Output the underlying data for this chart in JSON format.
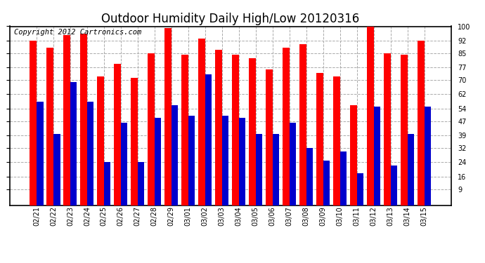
{
  "title": "Outdoor Humidity Daily High/Low 20120316",
  "copyright": "Copyright 2012 Cartronics.com",
  "dates": [
    "02/21",
    "02/22",
    "02/23",
    "02/24",
    "02/25",
    "02/26",
    "02/27",
    "02/28",
    "02/29",
    "03/01",
    "03/02",
    "03/03",
    "03/04",
    "03/05",
    "03/06",
    "03/07",
    "03/08",
    "03/09",
    "03/10",
    "03/11",
    "03/12",
    "03/13",
    "03/14",
    "03/15"
  ],
  "highs": [
    92,
    88,
    95,
    96,
    72,
    79,
    71,
    85,
    99,
    84,
    93,
    87,
    84,
    82,
    76,
    88,
    90,
    74,
    72,
    56,
    100,
    85,
    84,
    92
  ],
  "lows": [
    58,
    40,
    69,
    58,
    24,
    46,
    24,
    49,
    56,
    50,
    73,
    50,
    49,
    40,
    40,
    46,
    32,
    25,
    30,
    18,
    55,
    22,
    40,
    55
  ],
  "bar_color_high": "#ff0000",
  "bar_color_low": "#0000cc",
  "background_color": "#ffffff",
  "grid_color": "#aaaaaa",
  "yticks": [
    9,
    16,
    24,
    32,
    39,
    47,
    54,
    62,
    70,
    77,
    85,
    92,
    100
  ],
  "ymin": 0,
  "ymax": 100,
  "bar_width": 0.4,
  "title_fontsize": 12,
  "tick_fontsize": 7,
  "copyright_fontsize": 7.5
}
